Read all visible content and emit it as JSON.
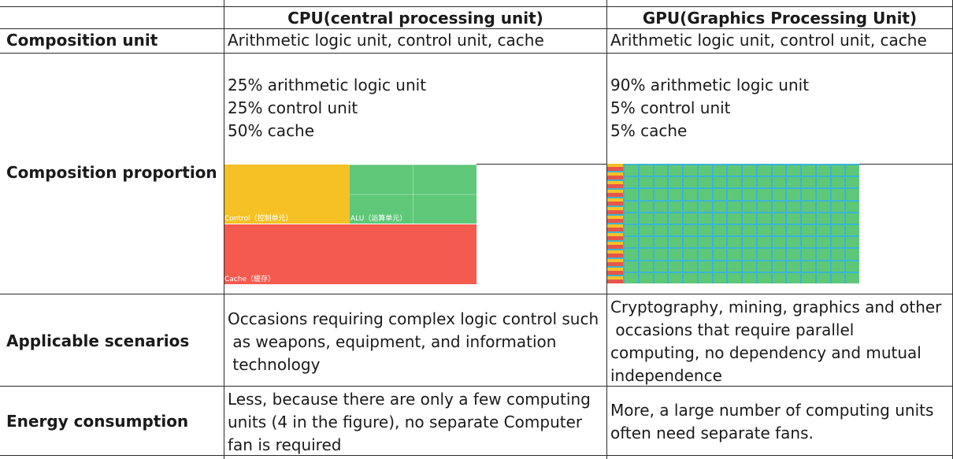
{
  "table": {
    "headers": {
      "cpu": "CPU(central processing unit)",
      "gpu": "GPU(Graphics Processing Unit)"
    },
    "rows": [
      {
        "label": "Composition unit",
        "cpu": "Arithmetic logic unit, control unit, cache",
        "gpu": "Arithmetic logic unit, control unit, cache"
      },
      {
        "label": "Composition proportion",
        "cpu": "25% arithmetic logic unit\n25% control unit\n50% cache",
        "gpu": "90% arithmetic logic unit\n5% control unit\n5% cache"
      },
      {
        "label": "Applicable scenarios",
        "cpu": "Occasions requiring complex logic control such\n as weapons, equipment, and information\n technology",
        "gpu": "Cryptography, mining, graphics and other\n occasions that require parallel\ncomputing, no dependency and mutual\nindependence"
      },
      {
        "label": "Energy consumption",
        "cpu": "Less, because there are only a few computing\nunits (4 in the figure), no separate Computer\nfan is required",
        "gpu": "More, a large number of computing units\noften need separate fans."
      }
    ]
  },
  "cpu_diagram": {
    "control_label": "Control（控制单元）",
    "alu_label": "ALU（运算单元）",
    "cache_label": "Cache（缓存）",
    "colors": {
      "control": "#f5c125",
      "alu": "#5ec878",
      "cache": "#f55a4e"
    }
  },
  "gpu_diagram": {
    "colors": {
      "alu": "#5ec878",
      "background": "#3ab5d4",
      "control": "#f5c125",
      "cache": "#e8554a"
    }
  }
}
